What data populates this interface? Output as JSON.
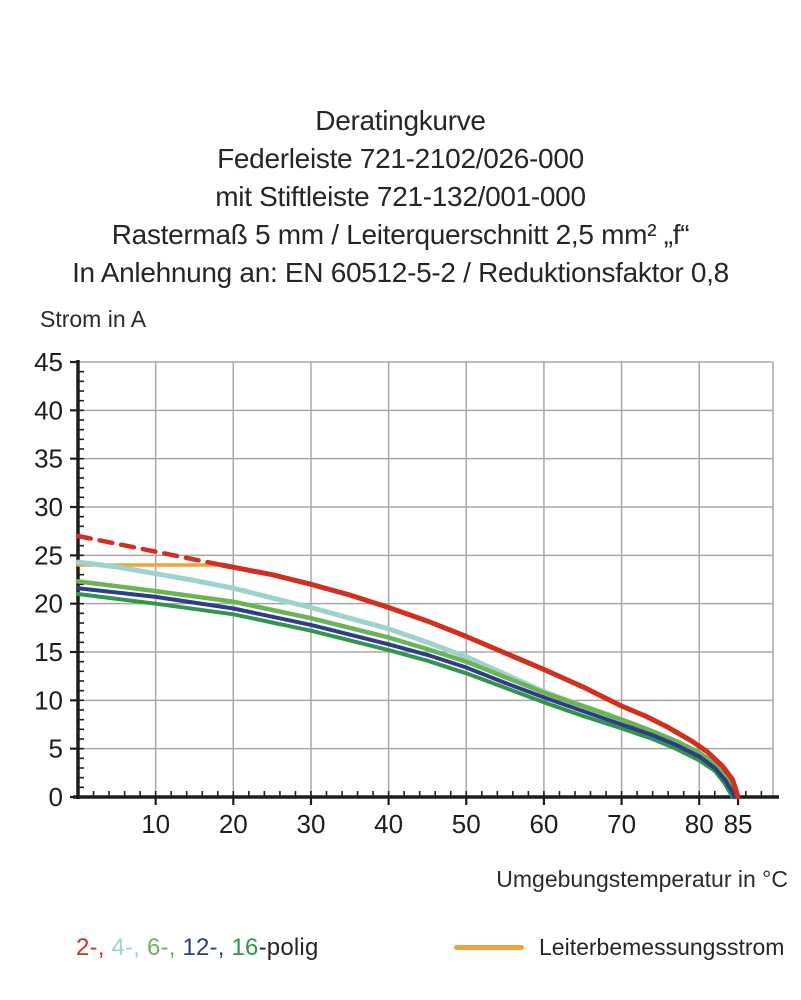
{
  "title_lines": [
    "Deratingkurve",
    "Federleiste 721-2102/026-000",
    "mit Stiftleiste 721-132/001-000",
    "Rastermaß 5 mm / Leiterquerschnitt 2,5 mm² „f“",
    "In Anlehnung an: EN 60512-5-2 / Reduktionsfaktor 0,8"
  ],
  "chart_data": {
    "type": "line",
    "title": "Deratingkurve",
    "ylabel": "Strom in A",
    "xlabel": "Umgebungstemperatur in °C",
    "xlim": [
      0,
      89.5
    ],
    "ylim": [
      0,
      45
    ],
    "x_tick_labels": [
      10,
      20,
      30,
      40,
      50,
      60,
      70,
      80,
      85
    ],
    "y_tick_labels": [
      0,
      5,
      10,
      15,
      20,
      25,
      30,
      35,
      40,
      45
    ],
    "x_gridlines": [
      10,
      20,
      30,
      40,
      50,
      60,
      70,
      80,
      89.5
    ],
    "y_gridlines": [
      5,
      10,
      15,
      20,
      25,
      30,
      35,
      40,
      45
    ],
    "x_minor_tick_step": 2,
    "y_minor_tick_step": 1,
    "grid": true,
    "grid_color": "#a8a8a8",
    "axis_color": "#1d1d1b",
    "series": [
      {
        "name": "Leiterbemessungsstrom",
        "color": "#eda33f",
        "width": 3.5,
        "dash": null,
        "points": [
          [
            0,
            24
          ],
          [
            18.5,
            24
          ]
        ]
      },
      {
        "name": "4-polig",
        "color": "#9dd3cc",
        "width": 5,
        "dash": null,
        "points": [
          [
            0,
            24.3
          ],
          [
            5,
            23.8
          ],
          [
            10,
            23.1
          ],
          [
            15,
            22.4
          ],
          [
            20,
            21.6
          ],
          [
            25,
            20.6
          ],
          [
            30,
            19.6
          ],
          [
            35,
            18.5
          ],
          [
            40,
            17.4
          ],
          [
            45,
            16.0
          ],
          [
            50,
            14.5
          ],
          [
            55,
            12.7
          ],
          [
            60,
            10.9
          ],
          [
            64,
            9.7
          ],
          [
            68,
            8.6
          ],
          [
            72,
            7.4
          ],
          [
            76,
            6.1
          ],
          [
            79,
            4.9
          ],
          [
            81,
            4.0
          ],
          [
            83,
            2.7
          ],
          [
            84.2,
            1.2
          ],
          [
            84.6,
            0
          ]
        ]
      },
      {
        "name": "6-polig",
        "color": "#6ab357",
        "width": 4.5,
        "dash": null,
        "points": [
          [
            0,
            22.3
          ],
          [
            10,
            21.3
          ],
          [
            20,
            20.2
          ],
          [
            30,
            18.5
          ],
          [
            40,
            16.5
          ],
          [
            45,
            15.3
          ],
          [
            50,
            14.0
          ],
          [
            55,
            12.4
          ],
          [
            60,
            10.8
          ],
          [
            65,
            9.4
          ],
          [
            70,
            8.0
          ],
          [
            74,
            6.8
          ],
          [
            77,
            5.8
          ],
          [
            80,
            4.6
          ],
          [
            82,
            3.4
          ],
          [
            83.6,
            2.0
          ],
          [
            84.5,
            0.7
          ],
          [
            84.7,
            0
          ]
        ]
      },
      {
        "name": "16-polig",
        "color": "#33944d",
        "width": 4,
        "dash": null,
        "points": [
          [
            0,
            21.0
          ],
          [
            10,
            20.0
          ],
          [
            20,
            18.9
          ],
          [
            30,
            17.2
          ],
          [
            40,
            15.2
          ],
          [
            45,
            14.1
          ],
          [
            50,
            12.8
          ],
          [
            55,
            11.3
          ],
          [
            60,
            9.8
          ],
          [
            65,
            8.4
          ],
          [
            70,
            7.1
          ],
          [
            74,
            6.0
          ],
          [
            77,
            5.0
          ],
          [
            80,
            3.8
          ],
          [
            82,
            2.7
          ],
          [
            83.2,
            1.5
          ],
          [
            84,
            0.4
          ],
          [
            84.3,
            0
          ]
        ]
      },
      {
        "name": "12-polig",
        "color": "#2e3d85",
        "width": 4,
        "dash": null,
        "points": [
          [
            0,
            21.6
          ],
          [
            10,
            20.7
          ],
          [
            20,
            19.5
          ],
          [
            30,
            17.8
          ],
          [
            40,
            15.8
          ],
          [
            45,
            14.7
          ],
          [
            50,
            13.4
          ],
          [
            55,
            11.8
          ],
          [
            60,
            10.3
          ],
          [
            65,
            8.9
          ],
          [
            70,
            7.5
          ],
          [
            74,
            6.4
          ],
          [
            77,
            5.4
          ],
          [
            80,
            4.2
          ],
          [
            82,
            3.0
          ],
          [
            83.4,
            1.7
          ],
          [
            84.3,
            0.5
          ],
          [
            84.5,
            0
          ]
        ]
      },
      {
        "name": "2-polig extrapoliert",
        "color": "#cf301f",
        "width": 4.5,
        "dash": "13 9",
        "points": [
          [
            0,
            27
          ],
          [
            18.5,
            24
          ]
        ]
      },
      {
        "name": "2-polig",
        "color": "#cf301f",
        "width": 5,
        "dash": null,
        "points": [
          [
            18.5,
            24
          ],
          [
            25,
            23.0
          ],
          [
            30,
            22.0
          ],
          [
            35,
            20.9
          ],
          [
            40,
            19.6
          ],
          [
            45,
            18.2
          ],
          [
            50,
            16.6
          ],
          [
            55,
            14.9
          ],
          [
            60,
            13.2
          ],
          [
            65,
            11.4
          ],
          [
            70,
            9.4
          ],
          [
            73,
            8.4
          ],
          [
            76,
            7.2
          ],
          [
            79,
            5.8
          ],
          [
            81,
            4.7
          ],
          [
            83,
            3.2
          ],
          [
            84.3,
            1.8
          ],
          [
            85,
            0
          ]
        ]
      }
    ]
  },
  "legend": {
    "poles": {
      "items": [
        {
          "text": "2-, ",
          "color": "#cf301f"
        },
        {
          "text": "4-, ",
          "color": "#9dd3cc"
        },
        {
          "text": "6-, ",
          "color": "#6ab357"
        },
        {
          "text": "12-, ",
          "color": "#2e3d85"
        },
        {
          "text": "16",
          "color": "#33944d"
        }
      ],
      "suffix": "-polig"
    },
    "rated": {
      "label": "Leiterbemessungsstrom",
      "swatch_color": "#eda33f"
    }
  }
}
